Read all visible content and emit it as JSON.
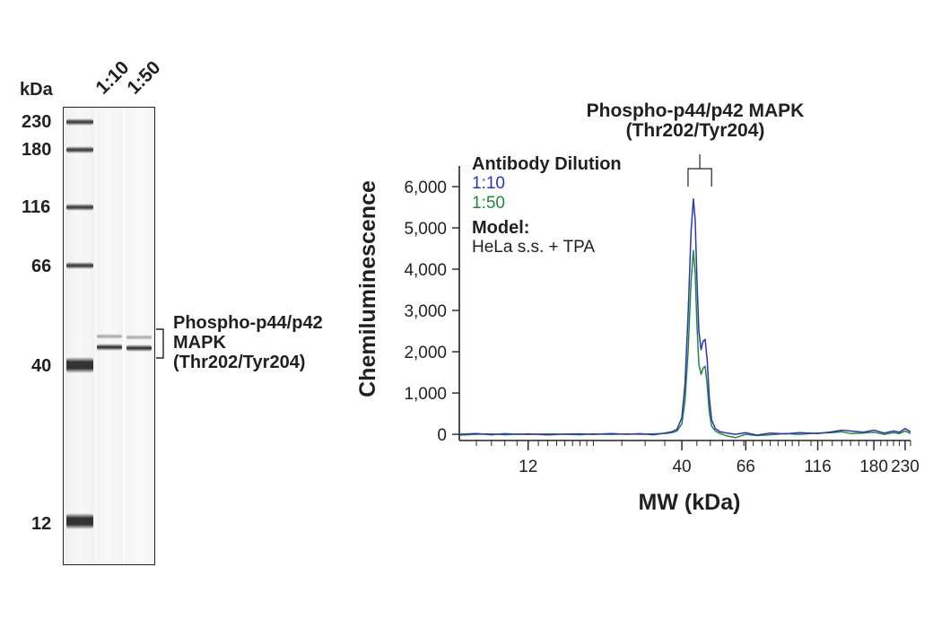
{
  "gel": {
    "unit_label": "kDa",
    "lane_labels": [
      "1:10",
      "1:50"
    ],
    "mw_markers": [
      "230",
      "180",
      "116",
      "66",
      "40",
      "12"
    ],
    "band_annotation": {
      "line1": "Phospho-p44/p42",
      "line2": "MAPK",
      "line3": "(Thr202/Tyr204)"
    }
  },
  "chart": {
    "peak_title": {
      "line1": "Phospho-p44/p42 MAPK",
      "line2": "(Thr202/Tyr204)"
    },
    "legend": {
      "heading": "Antibody Dilution",
      "series1": "1:10",
      "series2": "1:50",
      "model_heading": "Model:",
      "model_value": "HeLa s.s. + TPA"
    },
    "colors": {
      "series1": "#2b35b8",
      "series2": "#1f8a3c",
      "text": "#231f20"
    }
  },
  "chart_data": {
    "type": "line",
    "title": "Phospho-p44/p42 MAPK (Thr202/Tyr204)",
    "xlabel": "MW (kDa)",
    "ylabel": "Chemiluminescence",
    "x_scale": "log",
    "x_ticks": [
      12,
      40,
      66,
      116,
      180,
      230
    ],
    "x_tick_labels": [
      "12",
      "40",
      "66",
      "116",
      "180",
      "230"
    ],
    "xlim": [
      7,
      240
    ],
    "ylim": [
      -150,
      6500
    ],
    "y_ticks": [
      0,
      1000,
      2000,
      3000,
      4000,
      5000,
      6000
    ],
    "y_tick_labels": [
      "0",
      "1,000",
      "2,000",
      "3,000",
      "4,000",
      "5,000",
      "6,000"
    ],
    "series": [
      {
        "name": "1:10",
        "color": "#2b35b8",
        "x": [
          7,
          8,
          9,
          10,
          11,
          12,
          14,
          16,
          18,
          20,
          23,
          26,
          29,
          32,
          35,
          37,
          38.5,
          40,
          41,
          42,
          43,
          43.8,
          44.4,
          45,
          45.7,
          46.5,
          47.2,
          48,
          48.8,
          49.6,
          50.5,
          52,
          54,
          57,
          61,
          66,
          72,
          80,
          90,
          100,
          116,
          130,
          140,
          150,
          165,
          180,
          195,
          210,
          220,
          230,
          240
        ],
        "y": [
          0,
          20,
          -10,
          15,
          0,
          10,
          -15,
          5,
          10,
          -5,
          20,
          0,
          15,
          -10,
          30,
          60,
          120,
          400,
          1200,
          2900,
          4900,
          5700,
          5200,
          3800,
          2500,
          2050,
          2250,
          2300,
          1800,
          900,
          350,
          140,
          60,
          30,
          0,
          40,
          -20,
          30,
          10,
          40,
          20,
          60,
          100,
          80,
          50,
          100,
          30,
          80,
          50,
          140,
          60
        ]
      },
      {
        "name": "1:50",
        "color": "#1f8a3c",
        "x": [
          7,
          8,
          9,
          10,
          11,
          12,
          14,
          16,
          18,
          20,
          23,
          26,
          29,
          32,
          35,
          37,
          38.5,
          40,
          41,
          42,
          43,
          43.8,
          44.4,
          45,
          45.7,
          46.5,
          47.2,
          48,
          48.8,
          49.6,
          50.5,
          52,
          54,
          57,
          61,
          66,
          72,
          80,
          90,
          100,
          116,
          130,
          140,
          150,
          165,
          180,
          195,
          210,
          220,
          230,
          240
        ],
        "y": [
          -20,
          0,
          10,
          -10,
          5,
          -5,
          10,
          0,
          -10,
          10,
          -5,
          10,
          0,
          10,
          20,
          40,
          80,
          250,
          800,
          2000,
          3700,
          4450,
          3900,
          2700,
          1700,
          1450,
          1600,
          1650,
          1200,
          550,
          200,
          80,
          20,
          -40,
          -80,
          0,
          -30,
          -10,
          20,
          0,
          30,
          40,
          60,
          20,
          30,
          50,
          0,
          40,
          20,
          80,
          20
        ]
      }
    ]
  }
}
